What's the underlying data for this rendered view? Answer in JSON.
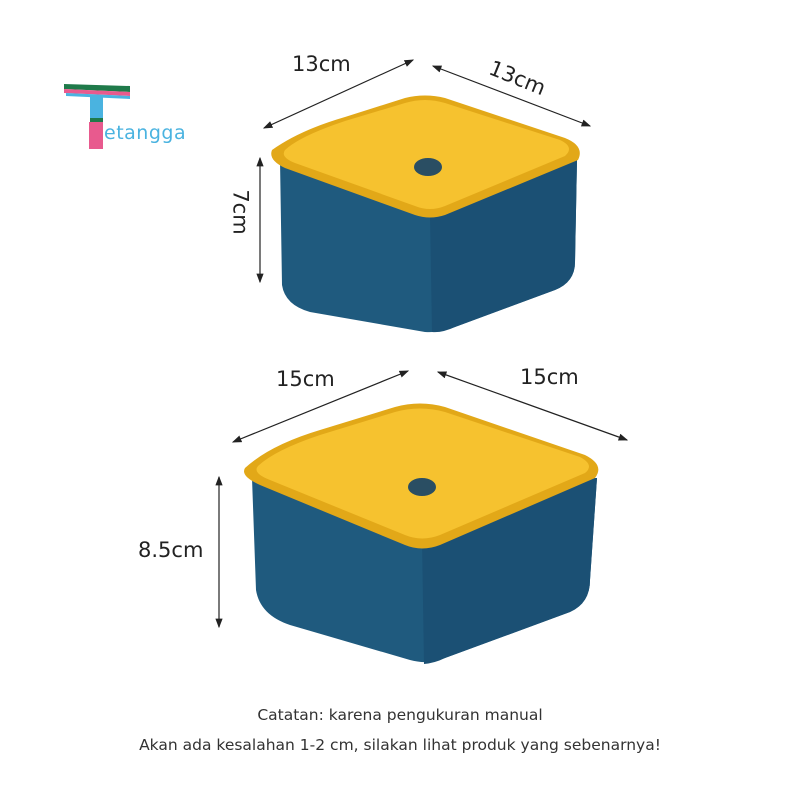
{
  "logo": {
    "text": "Tetangga",
    "suffix": "etangga",
    "colors": {
      "pink": "#e85a8e",
      "blue": "#4ab3e0",
      "green": "#1f7a4a"
    }
  },
  "small_box": {
    "width_label": "13cm",
    "depth_label": "13cm",
    "height_label": "7cm"
  },
  "large_box": {
    "width_label": "15cm",
    "depth_label": "15cm",
    "height_label": "8.5cm"
  },
  "colors": {
    "lid": "#f6c22f",
    "lid_edge": "#e2a818",
    "body": "#1f5a7e",
    "body_dark": "#154664",
    "knob": "#2a4e63"
  },
  "note": {
    "line1": "Catatan: karena pengukuran manual",
    "line2": "Akan ada kesalahan 1-2 cm, silakan lihat produk yang sebenarnya!"
  }
}
